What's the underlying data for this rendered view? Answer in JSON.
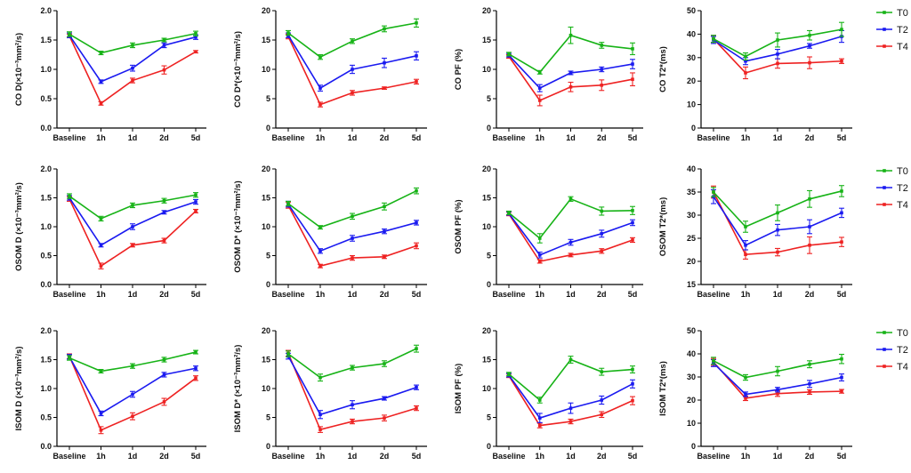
{
  "series_meta": [
    {
      "name": "T0",
      "color": "#17b317"
    },
    {
      "name": "T2",
      "color": "#1a1af0"
    },
    {
      "name": "T4",
      "color": "#ee2222"
    }
  ],
  "chart_data": [
    {
      "type": "line",
      "region": "CO",
      "ylabel": "CO D(×10⁻³mm²/s)",
      "ylim": [
        0,
        2.0
      ],
      "yticks": [
        "0.0",
        "0.5",
        "1.0",
        "1.5",
        "2.0"
      ],
      "categories": [
        "Baseline",
        "1h",
        "1d",
        "2d",
        "5d"
      ],
      "series": [
        {
          "name": "T0",
          "values": [
            1.6,
            1.28,
            1.41,
            1.5,
            1.61
          ],
          "errors": [
            0.04,
            0.03,
            0.04,
            0.03,
            0.04
          ]
        },
        {
          "name": "T2",
          "values": [
            1.58,
            0.79,
            1.02,
            1.41,
            1.55
          ],
          "errors": [
            0.04,
            0.03,
            0.05,
            0.04,
            0.04
          ]
        },
        {
          "name": "T4",
          "values": [
            1.57,
            0.42,
            0.81,
            0.99,
            1.3
          ],
          "errors": [
            0.03,
            0.03,
            0.04,
            0.07,
            0.02
          ]
        }
      ]
    },
    {
      "type": "line",
      "region": "CO",
      "ylabel": "CO D*(×10⁻³mm²/s)",
      "ylim": [
        0,
        20
      ],
      "yticks": [
        "0",
        "5",
        "10",
        "15",
        "20"
      ],
      "categories": [
        "Baseline",
        "1h",
        "1d",
        "2d",
        "5d"
      ],
      "series": [
        {
          "name": "T0",
          "values": [
            16.2,
            12.1,
            14.8,
            16.9,
            17.9
          ],
          "errors": [
            0.4,
            0.4,
            0.4,
            0.5,
            0.7
          ]
        },
        {
          "name": "T2",
          "values": [
            15.8,
            6.8,
            10.0,
            11.1,
            12.3
          ],
          "errors": [
            0.4,
            0.5,
            0.7,
            0.8,
            0.7
          ]
        },
        {
          "name": "T4",
          "values": [
            15.6,
            4.0,
            6.0,
            6.8,
            7.9
          ],
          "errors": [
            0.4,
            0.4,
            0.4,
            0.2,
            0.4
          ]
        }
      ]
    },
    {
      "type": "line",
      "region": "CO",
      "ylabel": "CO PF (%)",
      "ylim": [
        0,
        20
      ],
      "yticks": [
        "0",
        "5",
        "10",
        "15",
        "20"
      ],
      "categories": [
        "Baseline",
        "1h",
        "1d",
        "2d",
        "5d"
      ],
      "series": [
        {
          "name": "T0",
          "values": [
            12.6,
            9.5,
            15.8,
            14.1,
            13.5
          ],
          "errors": [
            0.3,
            0.3,
            1.4,
            0.5,
            1.0
          ]
        },
        {
          "name": "T2",
          "values": [
            12.4,
            6.8,
            9.4,
            10.0,
            10.9
          ],
          "errors": [
            0.3,
            0.6,
            0.3,
            0.4,
            0.8
          ]
        },
        {
          "name": "T4",
          "values": [
            12.2,
            4.7,
            7.0,
            7.3,
            8.3
          ],
          "errors": [
            0.3,
            0.9,
            0.8,
            0.9,
            1.1
          ]
        }
      ]
    },
    {
      "type": "line",
      "region": "CO",
      "ylabel": "CO T2*(ms)",
      "ylim": [
        0,
        50
      ],
      "yticks": [
        "0",
        "10",
        "20",
        "30",
        "40",
        "50"
      ],
      "categories": [
        "Baseline",
        "1h",
        "1d",
        "2d",
        "5d"
      ],
      "series": [
        {
          "name": "T0",
          "values": [
            38.0,
            30.5,
            37.5,
            39.5,
            42.0
          ],
          "errors": [
            1.5,
            1.5,
            3.0,
            2.0,
            3.0
          ]
        },
        {
          "name": "T2",
          "values": [
            37.5,
            28.5,
            31.5,
            35.0,
            39.0
          ],
          "errors": [
            1.5,
            1.5,
            2.0,
            1.0,
            2.5
          ]
        },
        {
          "name": "T4",
          "values": [
            38.0,
            23.5,
            27.5,
            27.8,
            28.5
          ],
          "errors": [
            1.5,
            2.5,
            2.0,
            2.5,
            1.0
          ]
        }
      ],
      "legend": "right"
    },
    {
      "type": "line",
      "region": "OSOM",
      "ylabel": "OSOM D (×10⁻³mm²/s)",
      "ylim": [
        0,
        2.0
      ],
      "yticks": [
        "0.0",
        "0.5",
        "1.0",
        "1.5",
        "2.0"
      ],
      "categories": [
        "Baseline",
        "1h",
        "1d",
        "2d",
        "5d"
      ],
      "series": [
        {
          "name": "T0",
          "values": [
            1.53,
            1.14,
            1.37,
            1.45,
            1.55
          ],
          "errors": [
            0.04,
            0.04,
            0.04,
            0.04,
            0.04
          ]
        },
        {
          "name": "T2",
          "values": [
            1.5,
            0.68,
            1.0,
            1.25,
            1.43
          ],
          "errors": [
            0.04,
            0.03,
            0.05,
            0.03,
            0.04
          ]
        },
        {
          "name": "T4",
          "values": [
            1.48,
            0.32,
            0.68,
            0.76,
            1.27
          ],
          "errors": [
            0.04,
            0.05,
            0.03,
            0.04,
            0.03
          ]
        }
      ]
    },
    {
      "type": "line",
      "region": "OSOM",
      "ylabel": "OSOM D* (×10⁻³mm²/s)",
      "ylim": [
        0,
        20
      ],
      "yticks": [
        "0",
        "5",
        "10",
        "15",
        "20"
      ],
      "categories": [
        "Baseline",
        "1h",
        "1d",
        "2d",
        "5d"
      ],
      "series": [
        {
          "name": "T0",
          "values": [
            14.0,
            9.9,
            11.8,
            13.5,
            16.2
          ],
          "errors": [
            0.4,
            0.3,
            0.5,
            0.6,
            0.5
          ]
        },
        {
          "name": "T2",
          "values": [
            13.9,
            5.8,
            8.0,
            9.2,
            10.7
          ],
          "errors": [
            0.5,
            0.4,
            0.5,
            0.4,
            0.4
          ]
        },
        {
          "name": "T4",
          "values": [
            13.7,
            3.2,
            4.6,
            4.8,
            6.7
          ],
          "errors": [
            0.5,
            0.3,
            0.4,
            0.3,
            0.5
          ]
        }
      ]
    },
    {
      "type": "line",
      "region": "OSOM",
      "ylabel": "OSOM PF (%)",
      "ylim": [
        0,
        20
      ],
      "yticks": [
        "0",
        "5",
        "10",
        "15",
        "20"
      ],
      "categories": [
        "Baseline",
        "1h",
        "1d",
        "2d",
        "5d"
      ],
      "series": [
        {
          "name": "T0",
          "values": [
            12.4,
            8.0,
            14.8,
            12.7,
            12.8
          ],
          "errors": [
            0.3,
            0.8,
            0.4,
            0.7,
            0.7
          ]
        },
        {
          "name": "T2",
          "values": [
            12.3,
            5.1,
            7.3,
            8.8,
            10.7
          ],
          "errors": [
            0.3,
            0.5,
            0.5,
            0.6,
            0.5
          ]
        },
        {
          "name": "T4",
          "values": [
            12.2,
            4.0,
            5.1,
            5.8,
            7.7
          ],
          "errors": [
            0.3,
            0.3,
            0.3,
            0.4,
            0.4
          ]
        }
      ]
    },
    {
      "type": "line",
      "region": "OSOM",
      "ylabel": "OSOM T2*(ms)",
      "ylim": [
        15,
        40
      ],
      "yticks": [
        "15",
        "20",
        "25",
        "30",
        "35",
        "40"
      ],
      "categories": [
        "Baseline",
        "1h",
        "1d",
        "2d",
        "5d"
      ],
      "series": [
        {
          "name": "T0",
          "values": [
            35.0,
            27.5,
            30.5,
            33.5,
            35.2
          ],
          "errors": [
            1.0,
            1.2,
            1.7,
            1.8,
            1.2
          ]
        },
        {
          "name": "T2",
          "values": [
            34.0,
            23.5,
            26.8,
            27.5,
            30.5
          ],
          "errors": [
            1.5,
            1.0,
            1.2,
            1.5,
            1.0
          ]
        },
        {
          "name": "T4",
          "values": [
            35.0,
            21.5,
            22.0,
            23.5,
            24.2
          ],
          "errors": [
            1.3,
            1.0,
            0.8,
            1.8,
            1.0
          ]
        }
      ],
      "legend": "right"
    },
    {
      "type": "line",
      "region": "ISOM",
      "ylabel": "ISOM D (×10⁻³mm²/s)",
      "ylim": [
        0,
        2.0
      ],
      "yticks": [
        "0.0",
        "0.5",
        "1.0",
        "1.5",
        "2.0"
      ],
      "categories": [
        "Baseline",
        "1h",
        "1d",
        "2d",
        "5d"
      ],
      "series": [
        {
          "name": "T0",
          "values": [
            1.53,
            1.3,
            1.39,
            1.5,
            1.63
          ],
          "errors": [
            0.04,
            0.03,
            0.04,
            0.04,
            0.03
          ]
        },
        {
          "name": "T2",
          "values": [
            1.55,
            0.57,
            0.9,
            1.24,
            1.35
          ],
          "errors": [
            0.04,
            0.04,
            0.05,
            0.04,
            0.04
          ]
        },
        {
          "name": "T4",
          "values": [
            1.56,
            0.28,
            0.52,
            0.77,
            1.18
          ],
          "errors": [
            0.04,
            0.06,
            0.06,
            0.06,
            0.04
          ]
        }
      ]
    },
    {
      "type": "line",
      "region": "ISOM",
      "ylabel": "ISOM D* (×10⁻³mm²/s)",
      "ylim": [
        0,
        20
      ],
      "yticks": [
        "0",
        "5",
        "10",
        "15",
        "20"
      ],
      "categories": [
        "Baseline",
        "1h",
        "1d",
        "2d",
        "5d"
      ],
      "series": [
        {
          "name": "T0",
          "values": [
            16.0,
            11.9,
            13.6,
            14.3,
            16.9
          ],
          "errors": [
            0.5,
            0.6,
            0.4,
            0.5,
            0.6
          ]
        },
        {
          "name": "T2",
          "values": [
            15.6,
            5.5,
            7.2,
            8.3,
            10.2
          ],
          "errors": [
            0.5,
            0.7,
            0.7,
            0.3,
            0.4
          ]
        },
        {
          "name": "T4",
          "values": [
            16.1,
            2.9,
            4.3,
            4.9,
            6.6
          ],
          "errors": [
            0.5,
            0.5,
            0.4,
            0.5,
            0.4
          ]
        }
      ]
    },
    {
      "type": "line",
      "region": "ISOM",
      "ylabel": "ISOM PF (%)",
      "ylim": [
        0,
        20
      ],
      "yticks": [
        "0",
        "5",
        "10",
        "15",
        "20"
      ],
      "categories": [
        "Baseline",
        "1h",
        "1d",
        "2d",
        "5d"
      ],
      "series": [
        {
          "name": "T0",
          "values": [
            12.5,
            8.0,
            15.0,
            12.9,
            13.3
          ],
          "errors": [
            0.3,
            0.5,
            0.6,
            0.6,
            0.6
          ]
        },
        {
          "name": "T2",
          "values": [
            12.3,
            4.9,
            6.6,
            8.0,
            10.8
          ],
          "errors": [
            0.3,
            0.8,
            0.9,
            0.7,
            0.7
          ]
        },
        {
          "name": "T4",
          "values": [
            12.2,
            3.6,
            4.3,
            5.5,
            7.9
          ],
          "errors": [
            0.3,
            0.4,
            0.4,
            0.5,
            0.7
          ]
        }
      ]
    },
    {
      "type": "line",
      "region": "ISOM",
      "ylabel": "ISOM T2*(ms)",
      "ylim": [
        0,
        50
      ],
      "yticks": [
        "0",
        "10",
        "20",
        "30",
        "40",
        "50"
      ],
      "categories": [
        "Baseline",
        "1h",
        "1d",
        "2d",
        "5d"
      ],
      "series": [
        {
          "name": "T0",
          "values": [
            37.0,
            29.8,
            32.5,
            35.5,
            37.8
          ],
          "errors": [
            1.5,
            1.2,
            2.0,
            1.5,
            2.0
          ]
        },
        {
          "name": "T2",
          "values": [
            36.0,
            22.5,
            24.5,
            27.0,
            29.8
          ],
          "errors": [
            1.5,
            1.0,
            1.0,
            1.5,
            1.5
          ]
        },
        {
          "name": "T4",
          "values": [
            36.5,
            20.8,
            22.8,
            23.5,
            23.8
          ],
          "errors": [
            1.5,
            1.0,
            1.2,
            1.0,
            0.8
          ]
        }
      ],
      "legend": "right"
    }
  ]
}
